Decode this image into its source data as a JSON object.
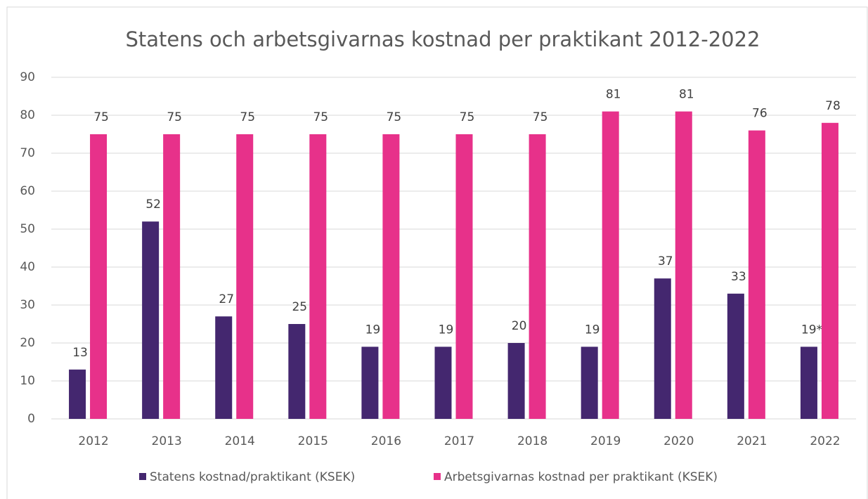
{
  "chart_data": {
    "type": "bar",
    "title": "Statens och arbetsgivarnas kostnad per praktikant 2012-2022",
    "categories": [
      "2012",
      "2013",
      "2014",
      "2015",
      "2016",
      "2017",
      "2018",
      "2019",
      "2020",
      "2021",
      "2022"
    ],
    "series": [
      {
        "name": "Statens kostnad/praktikant (KSEK)",
        "color": "#44276f",
        "values": [
          13,
          52,
          27,
          25,
          19,
          19,
          20,
          19,
          37,
          33,
          19
        ],
        "value_labels": [
          "13",
          "52",
          "27",
          "25",
          "19",
          "19",
          "20",
          "19",
          "37",
          "33",
          "19*"
        ]
      },
      {
        "name": "Arbetsgivarnas kostnad per praktikant (KSEK)",
        "color": "#e7318a",
        "values": [
          75,
          75,
          75,
          75,
          75,
          75,
          75,
          81,
          81,
          76,
          78
        ]
      }
    ],
    "ylim": [
      0,
      90
    ],
    "yticks": [
      0,
      10,
      20,
      30,
      40,
      50,
      60,
      70,
      80,
      90
    ],
    "grid": true,
    "legend": "bottom"
  }
}
